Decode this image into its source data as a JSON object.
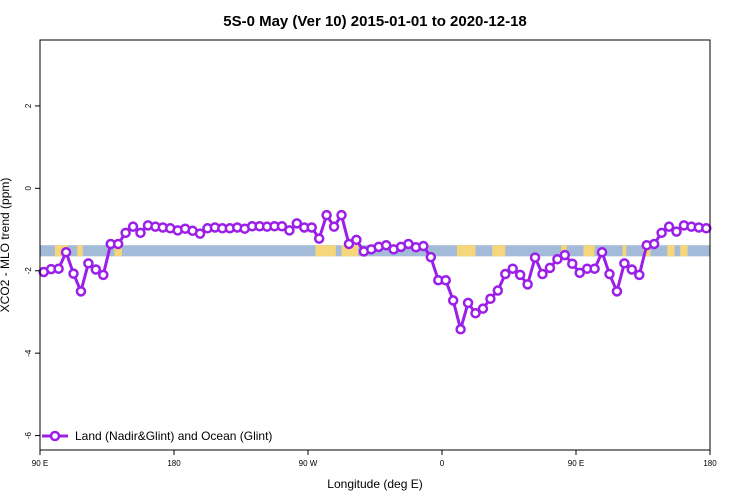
{
  "chart_data": {
    "type": "line",
    "title": "5S-0 May (Ver 10)   2015-01-01 to 2020-12-18",
    "xlabel": "Longitude (deg E)",
    "ylabel": "XCO2 - MLO trend (ppm)",
    "xlim": [
      90,
      450
    ],
    "ylim": [
      -6.35,
      3.6
    ],
    "x_ticks": [
      {
        "value": 90,
        "label": "90 E"
      },
      {
        "value": 162,
        "label": "180"
      },
      {
        "value": 234,
        "label": "90 W"
      },
      {
        "value": 306,
        "label": "0"
      },
      {
        "value": 378,
        "label": "90 E"
      },
      {
        "value": 450,
        "label": "180"
      }
    ],
    "y_ticks": [
      {
        "value": 2,
        "label": "2"
      },
      {
        "value": 0,
        "label": "0"
      },
      {
        "value": -2,
        "label": "-2"
      },
      {
        "value": -4,
        "label": "-4"
      },
      {
        "value": -6,
        "label": "-6"
      }
    ],
    "grid": false,
    "legend_position": "bottom-left",
    "band": {
      "y_top": -1.38,
      "y_bottom": -1.65,
      "ocean_color": "#a3bbd8",
      "land_color": "#f5d67a",
      "land_ranges": [
        [
          98,
          105
        ],
        [
          110,
          113
        ],
        [
          130,
          134
        ],
        [
          238,
          249
        ],
        [
          252,
          261
        ],
        [
          314,
          324
        ],
        [
          333,
          340
        ],
        [
          370,
          373
        ],
        [
          382,
          388
        ],
        [
          403,
          405
        ],
        [
          414,
          418
        ],
        [
          427,
          431
        ],
        [
          434,
          438
        ]
      ]
    },
    "series": [
      {
        "name": "Land (Nadir&Glint) and Ocean (Glint)",
        "color": "#9b1fe8",
        "x": [
          92,
          96,
          100,
          104,
          108,
          112,
          116,
          120,
          124,
          128,
          132,
          136,
          140,
          144,
          148,
          152,
          156,
          160,
          164,
          168,
          172,
          176,
          180,
          184,
          188,
          192,
          196,
          200,
          204,
          208,
          212,
          216,
          220,
          224,
          228,
          232,
          236,
          240,
          244,
          248,
          252,
          256,
          260,
          264,
          268,
          272,
          276,
          280,
          284,
          288,
          292,
          296,
          300,
          304,
          308,
          312,
          316,
          320,
          324,
          328,
          332,
          336,
          340,
          344,
          348,
          352,
          356,
          360,
          364,
          368,
          372,
          376,
          380,
          384,
          388,
          392,
          396,
          400,
          404,
          408,
          412,
          416,
          420,
          424,
          428,
          432,
          436,
          440,
          444,
          448
        ],
        "values": [
          -2.03,
          -1.96,
          -1.95,
          -1.55,
          -2.07,
          -2.5,
          -1.82,
          -1.97,
          -2.1,
          -1.35,
          -1.35,
          -1.08,
          -0.93,
          -1.08,
          -0.9,
          -0.93,
          -0.95,
          -0.97,
          -1.02,
          -0.98,
          -1.03,
          -1.1,
          -0.97,
          -0.95,
          -0.97,
          -0.97,
          -0.95,
          -0.98,
          -0.92,
          -0.92,
          -0.93,
          -0.92,
          -0.92,
          -1.02,
          -0.85,
          -0.95,
          -0.95,
          -1.22,
          -0.65,
          -0.93,
          -0.65,
          -1.35,
          -1.25,
          -1.53,
          -1.48,
          -1.42,
          -1.38,
          -1.48,
          -1.42,
          -1.35,
          -1.43,
          -1.4,
          -1.67,
          -2.23,
          -2.23,
          -2.72,
          -3.42,
          -2.78,
          -3.03,
          -2.92,
          -2.68,
          -2.48,
          -2.08,
          -1.95,
          -2.1,
          -2.33,
          -1.68,
          -2.08,
          -1.93,
          -1.72,
          -1.62,
          -1.83,
          -2.05,
          -1.95,
          -1.95,
          -1.55,
          -2.08,
          -2.5,
          -1.82,
          -1.97,
          -2.1,
          -1.38,
          -1.35,
          -1.08,
          -0.93,
          -1.05,
          -0.9,
          -0.93,
          -0.95,
          -0.97
        ]
      }
    ]
  }
}
